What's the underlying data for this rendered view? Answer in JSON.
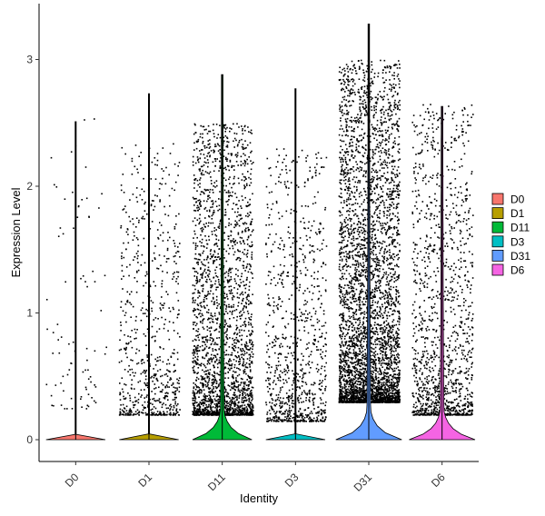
{
  "chart_data": {
    "type": "violin",
    "title": "",
    "xlabel": "Identity",
    "ylabel": "Expression Level",
    "categories": [
      "D0",
      "D1",
      "D11",
      "D3",
      "D31",
      "D6"
    ],
    "ylim": [
      -0.15,
      3.33
    ],
    "yticks": [
      0,
      1,
      2,
      3
    ],
    "grid": false,
    "legend_position": "right",
    "series": [
      {
        "name": "D0",
        "color": "#F8766D",
        "max": 2.51,
        "jitter_points": 85,
        "jitter_band": [
          0.25,
          2.55
        ],
        "violin_peak_width": 0.0
      },
      {
        "name": "D1",
        "color": "#B79F00",
        "max": 2.73,
        "jitter_points": 700,
        "jitter_band": [
          0.2,
          2.35
        ],
        "violin_peak_width": 0.0
      },
      {
        "name": "D11",
        "color": "#00BA38",
        "max": 2.88,
        "jitter_points": 2400,
        "jitter_band": [
          0.2,
          2.5
        ],
        "violin_peak_width": 0.9
      },
      {
        "name": "D3",
        "color": "#00BFC4",
        "max": 2.77,
        "jitter_points": 900,
        "jitter_band": [
          0.15,
          2.3
        ],
        "violin_peak_width": 0.0
      },
      {
        "name": "D31",
        "color": "#619CFF",
        "max": 3.28,
        "jitter_points": 4200,
        "jitter_band": [
          0.3,
          3.0
        ],
        "violin_peak_width": 1.0
      },
      {
        "name": "D6",
        "color": "#F564E3",
        "max": 2.63,
        "jitter_points": 1300,
        "jitter_band": [
          0.2,
          2.65
        ],
        "violin_peak_width": 1.0
      }
    ]
  }
}
